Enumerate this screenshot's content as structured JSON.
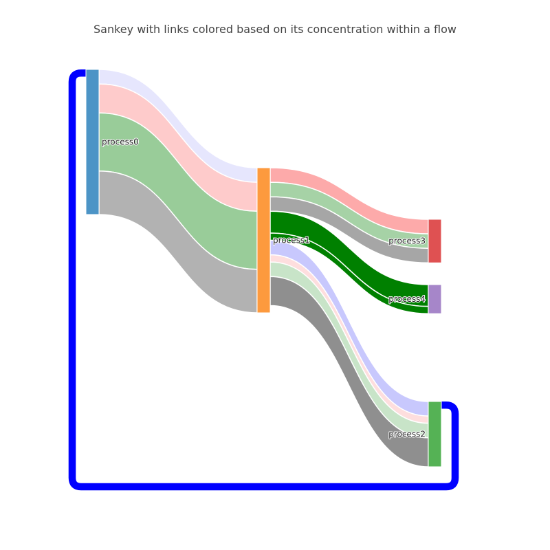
{
  "chart_data": {
    "type": "sankey",
    "title": "Sankey with links colored based on its concentration within a flow",
    "nodes": [
      {
        "label": "process0",
        "color": "#4c94c6"
      },
      {
        "label": "process1",
        "color": "#fd9a3e"
      },
      {
        "label": "process2",
        "color": "#55b255"
      },
      {
        "label": "process3",
        "color": "#df5152"
      },
      {
        "label": "process4",
        "color": "#a686c9"
      }
    ],
    "links": [
      {
        "source": 0,
        "target": 1,
        "value": 1,
        "color": "#e6e6fd"
      },
      {
        "source": 0,
        "target": 1,
        "value": 2,
        "color": "#fecbcb"
      },
      {
        "source": 0,
        "target": 1,
        "value": 4,
        "color": "#99cc99"
      },
      {
        "source": 0,
        "target": 1,
        "value": 3,
        "color": "#b2b2b2"
      },
      {
        "source": 1,
        "target": 3,
        "value": 1,
        "color": "#fdaaaa"
      },
      {
        "source": 1,
        "target": 3,
        "value": 1,
        "color": "#a6d2a6"
      },
      {
        "source": 1,
        "target": 3,
        "value": 1,
        "color": "#a6a6a6"
      },
      {
        "source": 1,
        "target": 4,
        "value": 1.5,
        "color": "#008000"
      },
      {
        "source": 1,
        "target": 4,
        "value": 0.5,
        "color": "#008000"
      },
      {
        "source": 1,
        "target": 2,
        "value": 1,
        "color": "#c8c8fd"
      },
      {
        "source": 1,
        "target": 2,
        "value": 0.5,
        "color": "#fedede"
      },
      {
        "source": 1,
        "target": 2,
        "value": 1,
        "color": "#c8e4c8"
      },
      {
        "source": 1,
        "target": 2,
        "value": 2,
        "color": "#8f8f8f"
      },
      {
        "source": 2,
        "target": 0,
        "value": 0.5,
        "color": "#0000ff"
      }
    ]
  }
}
